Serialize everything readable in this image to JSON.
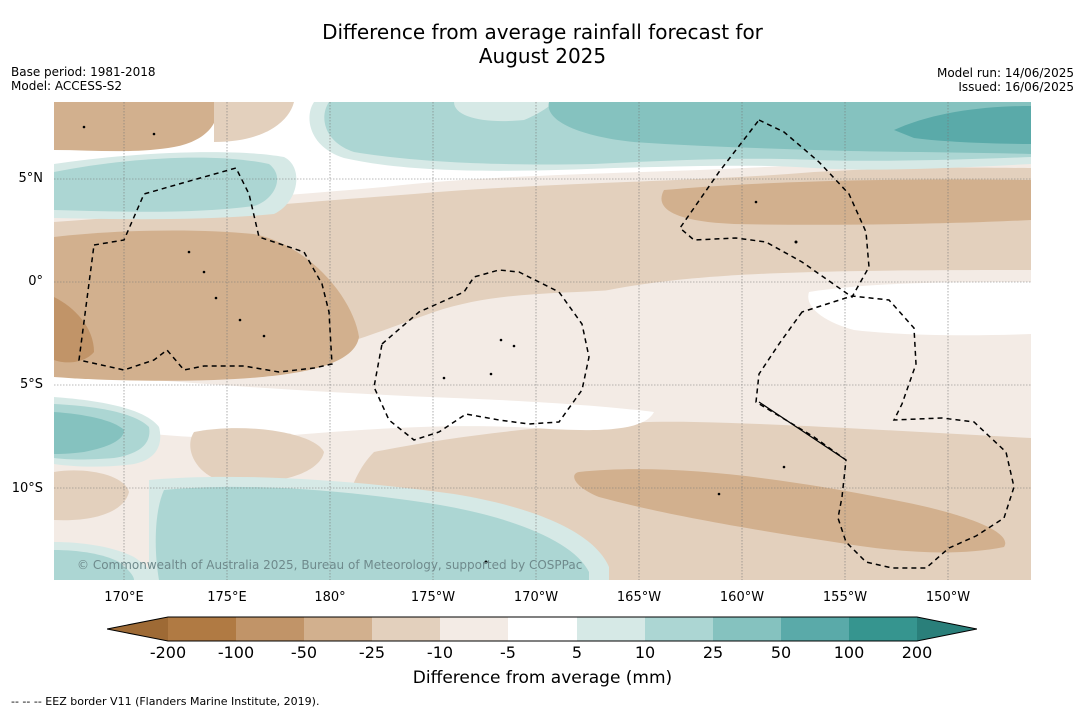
{
  "title": {
    "line1": "Difference from average rainfall forecast for",
    "line2": "August 2025"
  },
  "meta_left": {
    "base_period": "Base period: 1981-2018",
    "model": "Model: ACCESS-S2"
  },
  "meta_right": {
    "model_run": "Model run: 14/06/2025",
    "issued": "Issued: 16/06/2025"
  },
  "lat_labels": [
    "5°N",
    "0°",
    "5°S",
    "10°S"
  ],
  "lon_labels": [
    "170°E",
    "175°E",
    "180°",
    "175°W",
    "170°W",
    "165°W",
    "160°W",
    "155°W",
    "150°W"
  ],
  "copyright": "© Commonwealth of Australia 2025, Bureau of Meteorology, supported by COSPPac",
  "legend": {
    "ticks": [
      "-200",
      "-100",
      "-50",
      "-25",
      "-10",
      "-5",
      "5",
      "10",
      "25",
      "50",
      "100",
      "200"
    ],
    "colors": [
      "#b07a43",
      "#c19468",
      "#d2b08e",
      "#e3d0bd",
      "#f3ebe5",
      "#ffffff",
      "#d6e9e6",
      "#acd6d3",
      "#85c2bf",
      "#5aaaa9",
      "#36958f"
    ],
    "under_color": "#9e6a35",
    "over_color": "#2a7f7a",
    "label": "Difference from average (mm)"
  },
  "footnote": "--  --  -- EEZ border V11 (Flanders Marine Institute, 2019)."
}
